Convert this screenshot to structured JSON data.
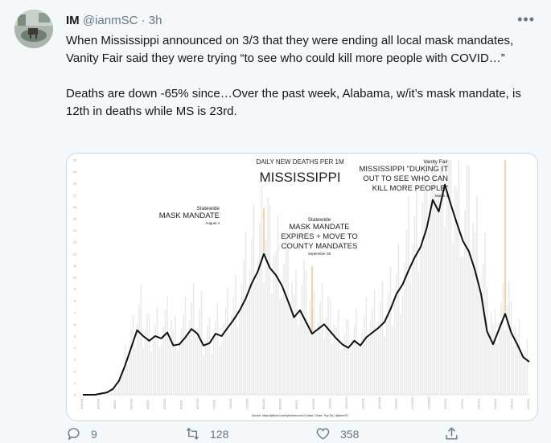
{
  "tweet": {
    "name": "IM",
    "handle": "@ianmSC",
    "separator": "·",
    "time": "3h",
    "more_icon": "more-icon",
    "paragraph1": "When Mississippi announced on 3/3 that they were ending all local mask mandates, Vanity Fair said they were trying “to see who could kill more people with COVID…”",
    "paragraph2": "Deaths are down -65% since…Over the past week, Alabama, w/it’s mask mandate, is 12th in deaths while MS is 23rd."
  },
  "actions": {
    "reply_count": "9",
    "retweet_count": "128",
    "like_count": "358",
    "icons": [
      "reply-icon",
      "retweet-icon",
      "like-icon",
      "share-icon"
    ]
  },
  "chart_data": {
    "type": "line",
    "subtitle": "DAILY NEW DEATHS PER 1M",
    "title": "MISSISSIPPI",
    "annotations": [
      {
        "small": "Statewide",
        "label": [
          "MASK MANDATE"
        ],
        "date": "August 4",
        "x_index": 30
      },
      {
        "small": "Statewide",
        "label": [
          "MASK MANDATE",
          "EXPIRES + MOVE TO",
          "COUNTY MANDATES"
        ],
        "date": "September 30",
        "x_index": 38
      },
      {
        "small": "Vanity Fair",
        "label": [
          "MISSISSIPPI \"DUKING IT",
          "OUT TO SEE WHO CAN",
          "KILL MORE PEOPLE\""
        ],
        "date": "March 3",
        "x_index": 70
      }
    ],
    "y_ticks": [
      0,
      1,
      2,
      3,
      4,
      5,
      6,
      7,
      8,
      9,
      10,
      11,
      12,
      13,
      14,
      15,
      16,
      17,
      18,
      19,
      20
    ],
    "x_ticks": [
      "3/11/20",
      "3/25/20",
      "4/8/20",
      "4/22/20",
      "5/6/20",
      "5/20/20",
      "6/3/20",
      "6/17/20",
      "7/1/20",
      "7/15/20",
      "7/29/20",
      "8/12/20",
      "8/26/20",
      "9/9/20",
      "9/23/20",
      "10/7/20",
      "10/21/20",
      "11/4/20",
      "11/18/20",
      "12/2/20",
      "12/16/20",
      "12/30/20",
      "1/13/21",
      "1/27/21",
      "2/10/21",
      "2/24/21",
      "3/10/21",
      "3/24/21"
    ],
    "values": [
      0,
      0,
      0,
      0.1,
      0.2,
      0.5,
      1.2,
      2.5,
      4.0,
      5.5,
      5.0,
      4.6,
      5.0,
      4.8,
      5.3,
      4.2,
      4.3,
      4.9,
      5.6,
      5.2,
      4.2,
      4.4,
      5.2,
      5.0,
      5.7,
      6.4,
      7.2,
      8.2,
      9.5,
      10.5,
      12.0,
      10.8,
      10.2,
      9.3,
      8.0,
      6.6,
      7.2,
      6.2,
      5.2,
      5.6,
      6.0,
      5.4,
      4.8,
      4.3,
      4.0,
      4.6,
      4.2,
      4.9,
      5.3,
      5.7,
      6.2,
      7.3,
      8.6,
      9.4,
      10.6,
      11.7,
      12.6,
      14.2,
      16.6,
      15.6,
      17.9,
      16.2,
      14.6,
      13.1,
      12.2,
      10.6,
      8.6,
      5.4,
      4.3,
      5.6,
      6.9,
      5.3,
      4.3,
      3.2,
      2.8
    ],
    "source": "Source: https://github.com/nytimes/covid-19-data  /  Chart: Tiny Tip  |  @ianmSC"
  }
}
